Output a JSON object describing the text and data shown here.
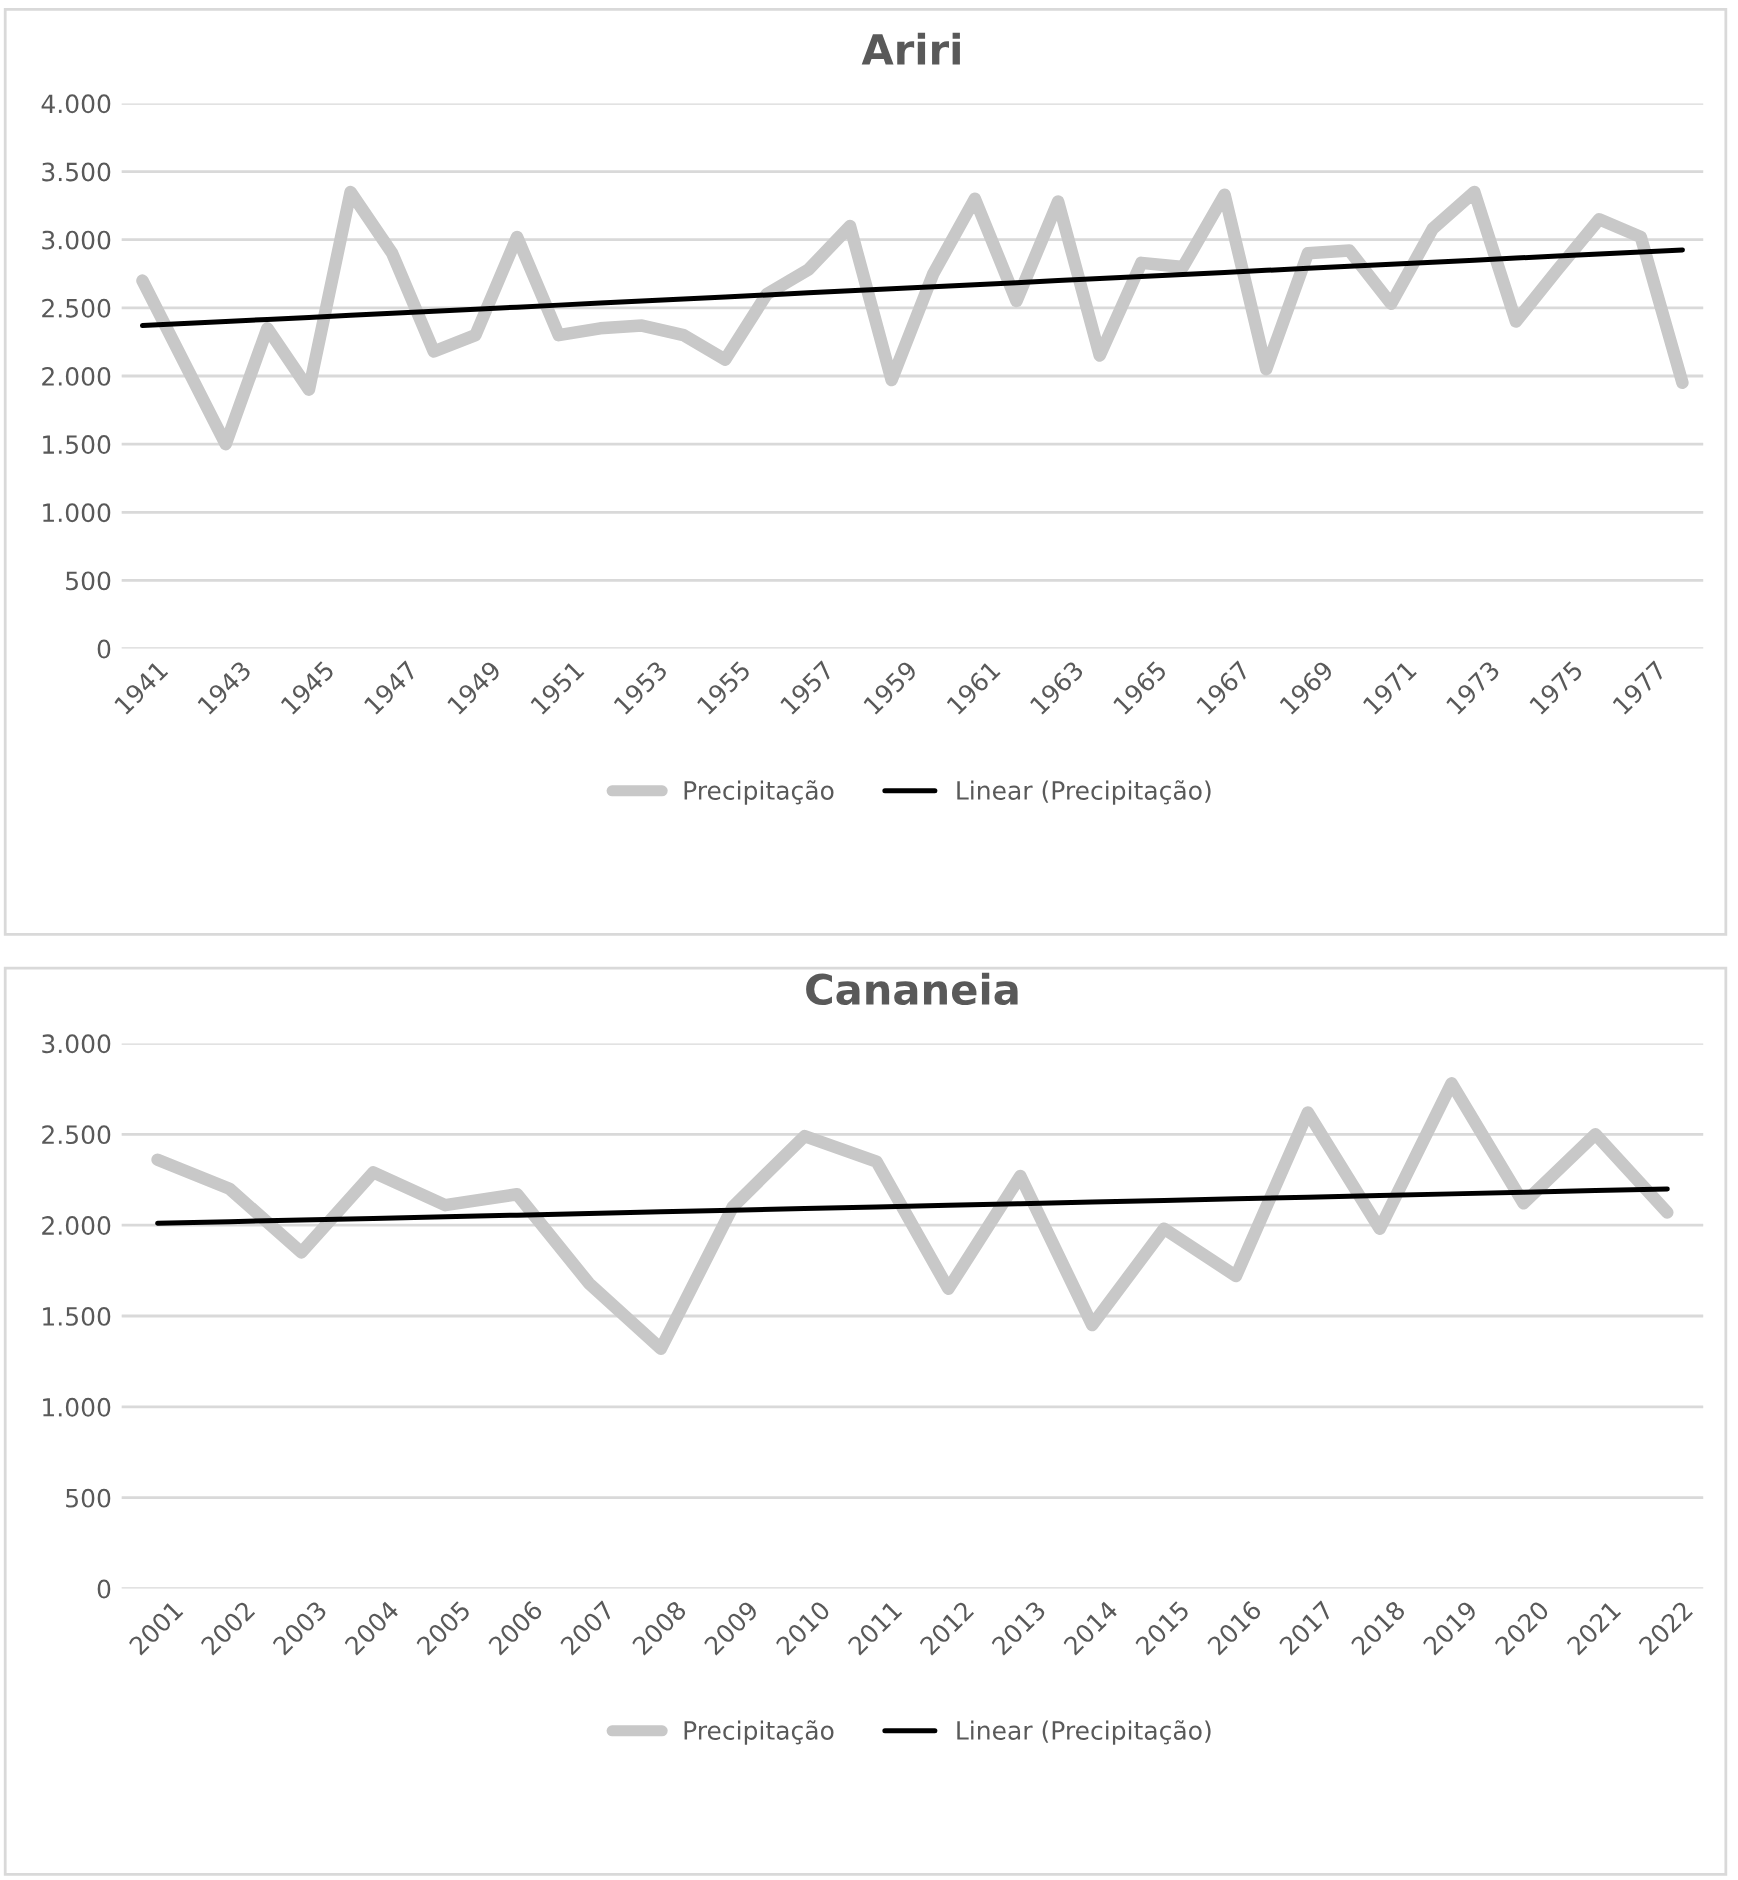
{
  "chart_data": [
    {
      "type": "line",
      "title": "Ariri",
      "categories": [
        "1941",
        null,
        "1943",
        null,
        "1945",
        null,
        "1947",
        null,
        "1949",
        null,
        "1951",
        null,
        "1953",
        null,
        "1955",
        null,
        "1957",
        null,
        "1959",
        null,
        "1961",
        null,
        "1963",
        null,
        "1965",
        null,
        "1967",
        null,
        "1969",
        null,
        "1971",
        null,
        "1973",
        null,
        "1975",
        null,
        "1977",
        null
      ],
      "series": [
        {
          "name": "Precipitação",
          "color": "#c8c8c8",
          "values": [
            2700,
            2100,
            1500,
            2350,
            1900,
            3350,
            2900,
            2180,
            2300,
            3020,
            2300,
            2350,
            2370,
            2300,
            2120,
            2600,
            2780,
            3100,
            1970,
            2750,
            3300,
            2550,
            3280,
            2150,
            2830,
            2800,
            3330,
            2050,
            2900,
            2920,
            2530,
            3080,
            3350,
            2400,
            2780,
            3150,
            3020,
            1950
          ]
        },
        {
          "name": "Linear (Precipitação)",
          "color": "#000000",
          "values": [
            2370,
            2385,
            2400,
            2415,
            2430,
            2445,
            2460,
            2475,
            2490,
            2505,
            2520,
            2535,
            2550,
            2565,
            2580,
            2595,
            2610,
            2625,
            2640,
            2655,
            2670,
            2685,
            2700,
            2715,
            2730,
            2745,
            2760,
            2775,
            2790,
            2805,
            2820,
            2835,
            2850,
            2865,
            2880,
            2895,
            2910,
            2925
          ]
        }
      ],
      "ylim": [
        0,
        4000
      ],
      "yticks": [
        {
          "value": 0,
          "label": "0"
        },
        {
          "value": 500,
          "label": "500"
        },
        {
          "value": 1000,
          "label": "1.000"
        },
        {
          "value": 1500,
          "label": "1.500"
        },
        {
          "value": 2000,
          "label": "2.000"
        },
        {
          "value": 2500,
          "label": "2.500"
        },
        {
          "value": 3000,
          "label": "3.000"
        },
        {
          "value": 3500,
          "label": "3.500"
        },
        {
          "value": 4000,
          "label": "4.000"
        }
      ],
      "grid": "y",
      "legend": "bottom",
      "marker": "none",
      "line_style": "solid"
    },
    {
      "type": "line",
      "title": "Cananeia",
      "categories": [
        "2001",
        "2002",
        "2003",
        "2004",
        "2005",
        "2006",
        "2007",
        "2008",
        "2009",
        "2010",
        "2011",
        "2012",
        "2013",
        "2014",
        "2015",
        "2016",
        "2017",
        "2018",
        "2019",
        "2020",
        "2021",
        "2022"
      ],
      "series": [
        {
          "name": "Precipitação",
          "color": "#c8c8c8",
          "values": [
            2360,
            2200,
            1850,
            2290,
            2110,
            2170,
            1680,
            1320,
            2100,
            2490,
            2350,
            1650,
            2270,
            1450,
            1980,
            1720,
            2620,
            1980,
            2780,
            2120,
            2500,
            2070
          ]
        },
        {
          "name": "Linear (Precipitação)",
          "color": "#000000",
          "values": [
            2010,
            2019,
            2028,
            2037,
            2046,
            2055,
            2064,
            2073,
            2082,
            2091,
            2100,
            2109,
            2118,
            2127,
            2136,
            2145,
            2154,
            2163,
            2172,
            2181,
            2190,
            2199
          ]
        }
      ],
      "ylim": [
        0,
        3000
      ],
      "yticks": [
        {
          "value": 0,
          "label": "0"
        },
        {
          "value": 500,
          "label": "500"
        },
        {
          "value": 1000,
          "label": "1.000"
        },
        {
          "value": 1500,
          "label": "1.500"
        },
        {
          "value": 2000,
          "label": "2.000"
        },
        {
          "value": 2500,
          "label": "2.500"
        },
        {
          "value": 3000,
          "label": "3.000"
        }
      ],
      "grid": "y",
      "legend": "bottom",
      "marker": "none",
      "line_style": "solid"
    }
  ]
}
